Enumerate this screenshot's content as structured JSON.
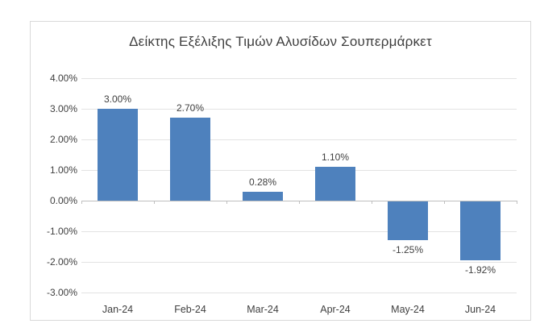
{
  "chart_data": {
    "type": "bar",
    "title": "Δείκτης Εξέλιξης Τιμών Αλυσίδων Σουπερμάρκετ",
    "categories": [
      "Jan-24",
      "Feb-24",
      "Mar-24",
      "Apr-24",
      "May-24",
      "Jun-24"
    ],
    "values": [
      3.0,
      2.7,
      0.28,
      1.1,
      -1.25,
      -1.92
    ],
    "data_labels": [
      "3.00%",
      "2.70%",
      "0.28%",
      "1.10%",
      "-1.25%",
      "-1.92%"
    ],
    "xlabel": "",
    "ylabel": "",
    "ylim": [
      -3,
      4
    ],
    "y_tick_values": [
      4,
      3,
      2,
      1,
      0,
      -1,
      -2,
      -3
    ],
    "y_tick_labels": [
      "4.00%",
      "3.00%",
      "2.00%",
      "1.00%",
      "0.00%",
      "-1.00%",
      "-2.00%",
      "-3.00%"
    ],
    "grid": true,
    "legend": false,
    "colors": {
      "bar": "#4e81bd",
      "gridline": "#e3e3e3",
      "axis_line": "#bfbfbf",
      "text": "#3f3f3f",
      "chart_border": "#d9d9d9",
      "background": "#ffffff"
    }
  }
}
